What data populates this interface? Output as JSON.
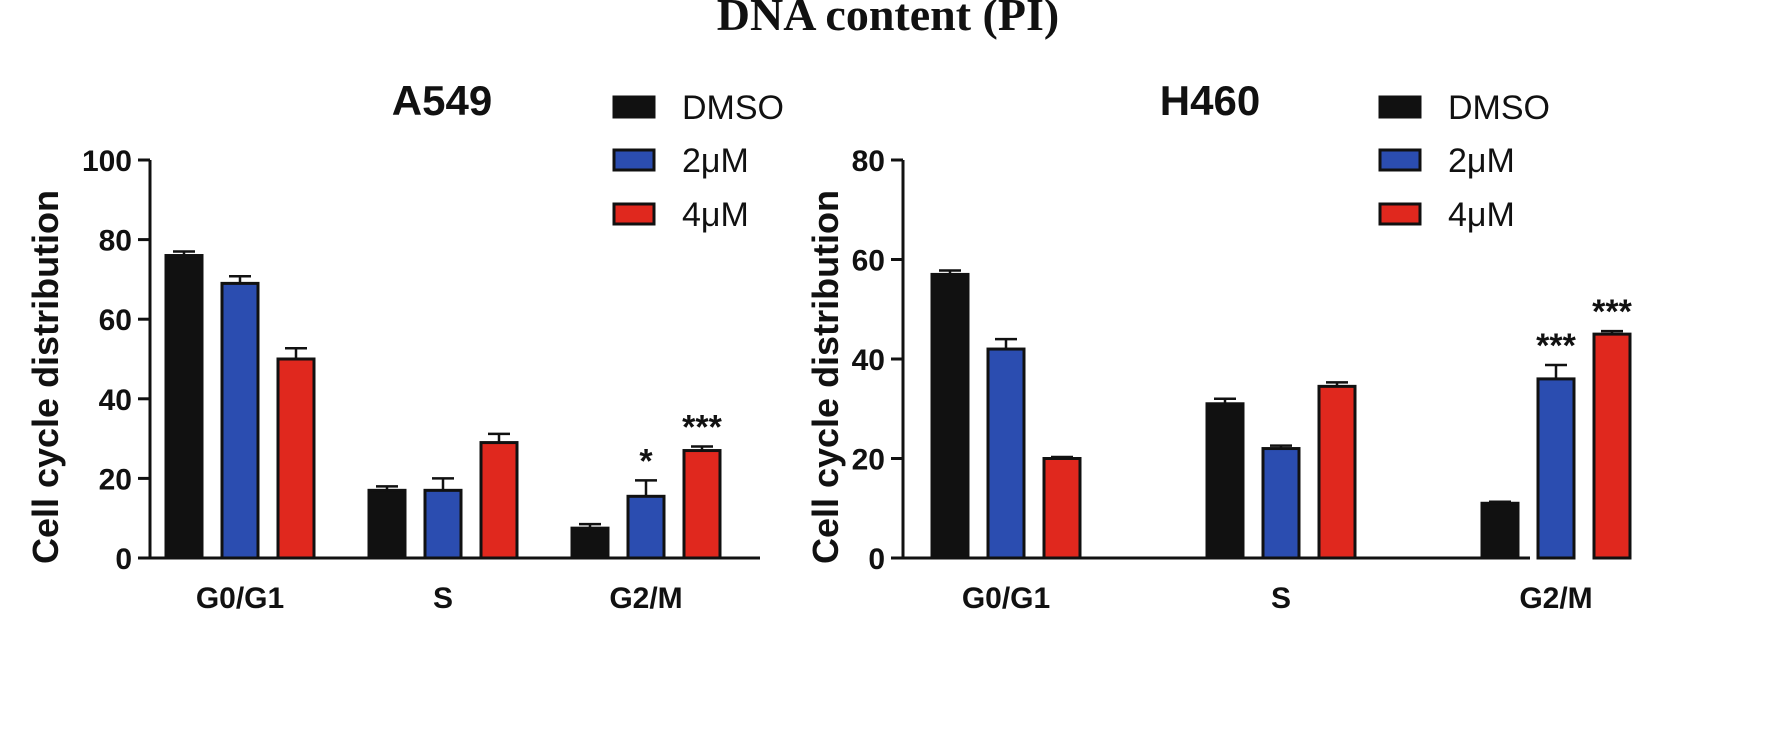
{
  "figure": {
    "title": "DNA content (PI)"
  },
  "chart_data": [
    {
      "type": "bar",
      "title": "A549",
      "ylabel": "Cell cycle distribution",
      "xlabel": "",
      "ylim": [
        0,
        100
      ],
      "yticks": [
        0,
        20,
        40,
        60,
        80,
        100
      ],
      "categories": [
        "G0/G1",
        "S",
        "G2/M"
      ],
      "series": [
        {
          "name": "DMSO",
          "color": "#111111",
          "values": [
            76,
            17,
            7.5
          ],
          "errors": [
            1,
            1,
            1
          ]
        },
        {
          "name": "2μM",
          "color": "#2b4db0",
          "values": [
            69,
            17,
            15.5
          ],
          "errors": [
            1.8,
            3,
            4
          ]
        },
        {
          "name": "4μM",
          "color": "#e0281e",
          "values": [
            50,
            29,
            27
          ],
          "errors": [
            2.7,
            2.2,
            1
          ]
        }
      ],
      "annotations": [
        {
          "category": "G2/M",
          "series": "2μM",
          "text": "*"
        },
        {
          "category": "G2/M",
          "series": "4μM",
          "text": "***"
        }
      ],
      "legend": "top-right",
      "grid": false
    },
    {
      "type": "bar",
      "title": "H460",
      "ylabel": "Cell cycle distribution",
      "xlabel": "",
      "ylim": [
        0,
        80
      ],
      "yticks": [
        0,
        20,
        40,
        60,
        80
      ],
      "categories": [
        "G0/G1",
        "S",
        "G2/M"
      ],
      "series": [
        {
          "name": "DMSO",
          "color": "#111111",
          "values": [
            57,
            31,
            11
          ],
          "errors": [
            0.8,
            1,
            0.3
          ]
        },
        {
          "name": "2μM",
          "color": "#2b4db0",
          "values": [
            42,
            22,
            36
          ],
          "errors": [
            2,
            0.6,
            2.8
          ]
        },
        {
          "name": "4μM",
          "color": "#e0281e",
          "values": [
            20,
            34.5,
            45
          ],
          "errors": [
            0.3,
            0.8,
            0.6
          ]
        }
      ],
      "annotations": [
        {
          "category": "G2/M",
          "series": "2μM",
          "text": "***"
        },
        {
          "category": "G2/M",
          "series": "4μM",
          "text": "***"
        }
      ],
      "legend": "top-right",
      "grid": false
    }
  ]
}
